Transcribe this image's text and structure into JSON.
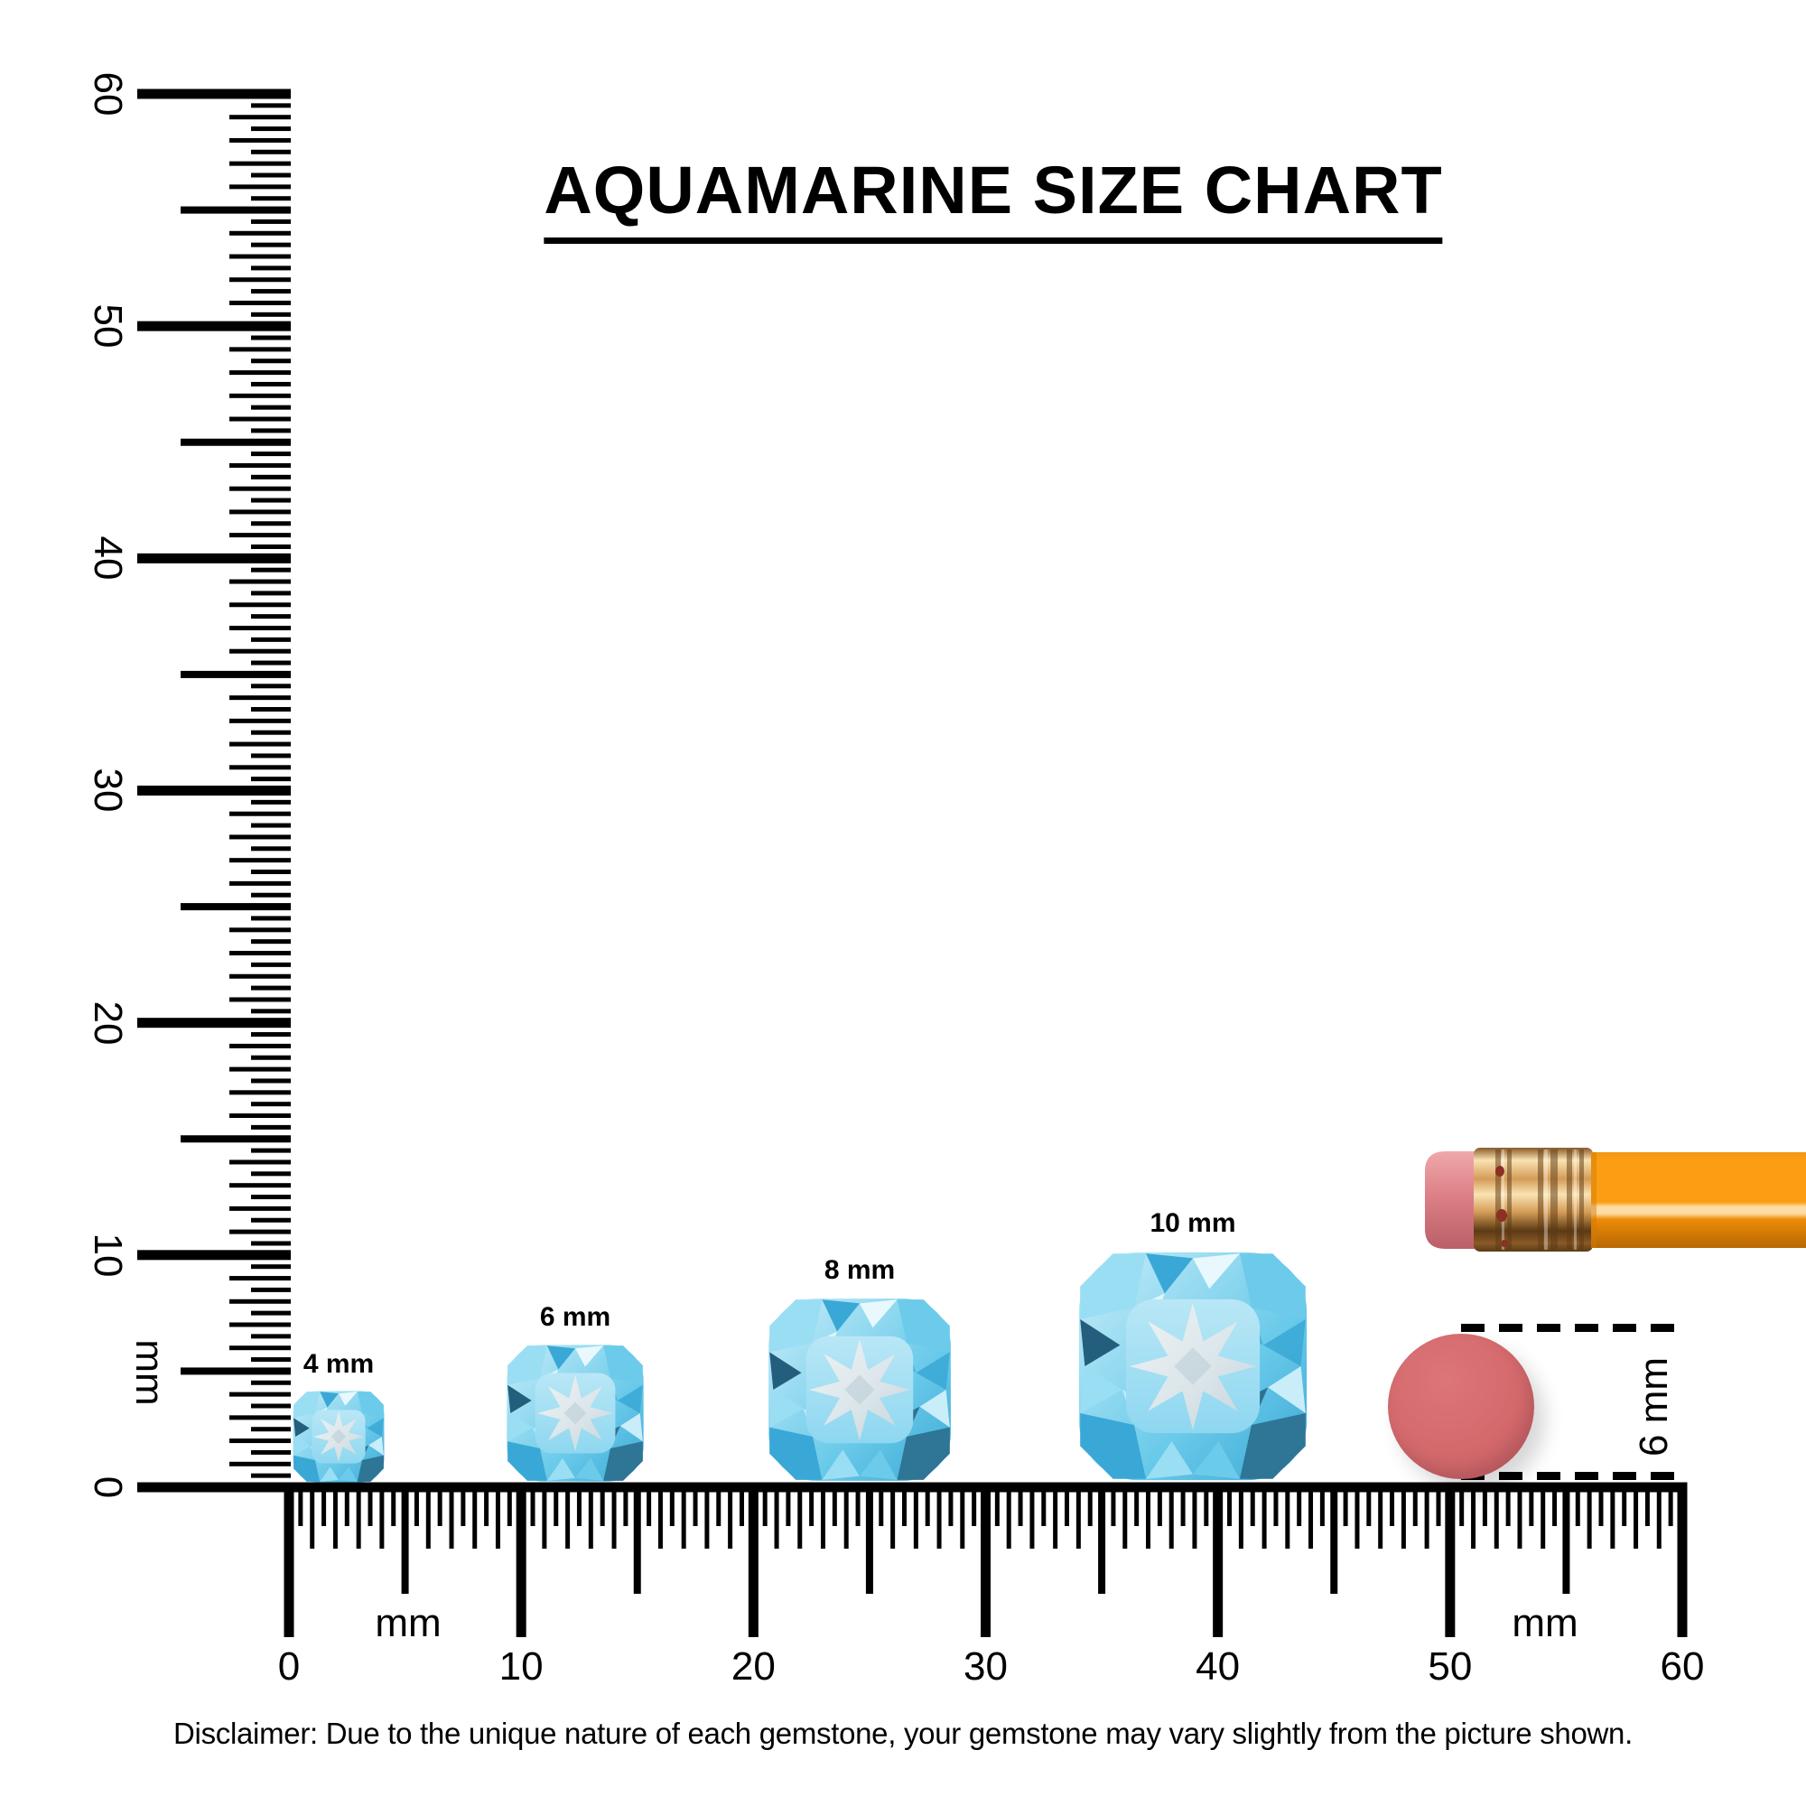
{
  "title": {
    "text": "AQUAMARINE SIZE CHART"
  },
  "rulers": {
    "vertical": {
      "unit_label": "mm",
      "tick_labels": [
        "60",
        "50",
        "40",
        "30",
        "20",
        "10",
        "0"
      ]
    },
    "horizontal": {
      "unit_label_left": "mm",
      "unit_label_right": "mm",
      "tick_labels": [
        "0",
        "10",
        "20",
        "30",
        "40",
        "50",
        "60"
      ]
    }
  },
  "gems": [
    {
      "label": "4 mm",
      "size_mm": 4
    },
    {
      "label": "6 mm",
      "size_mm": 6
    },
    {
      "label": "8 mm",
      "size_mm": 8
    },
    {
      "label": "10 mm",
      "size_mm": 10
    }
  ],
  "eraser_annotation": {
    "label": "6 mm"
  },
  "disclaimer": "Disclaimer: Due to the unique nature of each gemstone, your gemstone may vary slightly from the picture shown.",
  "chart_data": {
    "type": "scatter",
    "title": "AQUAMARINE SIZE CHART",
    "series": [
      {
        "name": "Aquamarine cushion-cut gemstones",
        "sizes_mm": [
          4,
          6,
          8,
          10
        ],
        "labels": [
          "4 mm",
          "6 mm",
          "8 mm",
          "10 mm"
        ],
        "ruler_positions_mm": [
          2,
          12,
          25,
          39
        ]
      }
    ],
    "reference_objects": [
      {
        "name": "pencil-eraser",
        "diameter_mm": 6,
        "ruler_position_mm": 50
      }
    ],
    "x_axis": {
      "unit": "mm",
      "range": [
        0,
        60
      ],
      "tick_step_mm": 0.5,
      "label_step_mm": 10
    },
    "y_axis": {
      "unit": "mm",
      "range": [
        0,
        60
      ],
      "tick_step_mm": 0.5,
      "label_step_mm": 10
    },
    "grid": false,
    "legend": false
  },
  "colors": {
    "ink": "#000000",
    "paper": "#ffffff",
    "gem_pale": "#c9edf9",
    "gem_light": "#e8f8fd",
    "gem_sky": "#9adef4",
    "gem_mid": "#6ccbea",
    "gem_deep": "#3aa8d6",
    "gem_dark": "#2e7596",
    "gem_teal": "#235e7c",
    "gem_table_hi": "#b9e7f6",
    "gem_table": "#8ed7f0",
    "gem_star_hi": "#eef3f5",
    "gem_star": "#dce6ea",
    "gem_star_shade": "#c4d4dc",
    "eraser_light": "#efa9ab",
    "eraser": "#dd8087",
    "eraser_dark": "#bb5f68",
    "ferrule_hi": "#f9e3b3",
    "ferrule": "#d49c58",
    "ferrule_dark": "#8a5a28",
    "ferrule_deep": "#5c3a14",
    "rivet": "#8c2f24",
    "pencil_top": "#f2970f",
    "pencil_body": "#fb9e13",
    "pencil_hi": "#fedda4",
    "pencil_shade": "#ec8c07",
    "pencil_dark": "#d07806",
    "pencil_edge": "#b96903",
    "eraser_plug_light": "#dc7679",
    "eraser_plug": "#d4696c",
    "eraser_plug_dark": "#bd5a61",
    "shadow": "rgba(0,0,0,0.16)"
  }
}
